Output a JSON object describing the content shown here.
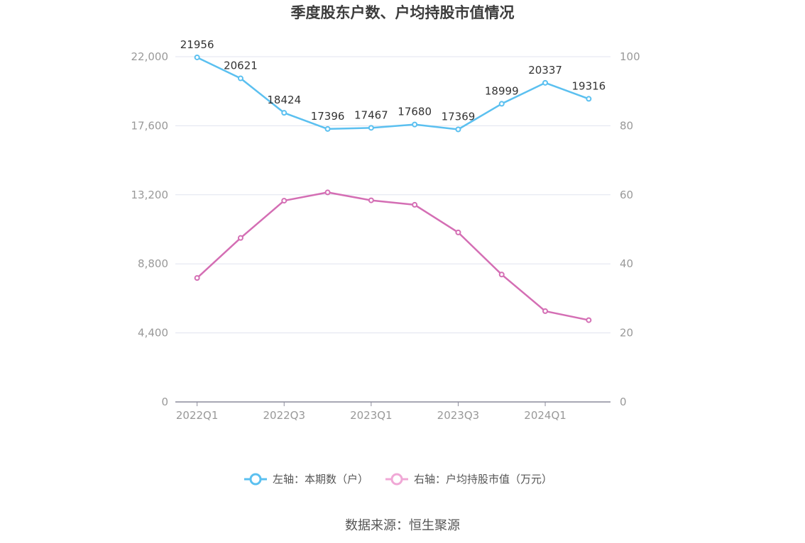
{
  "chart_data": {
    "type": "line",
    "title": "季度股东户数、户均持股市值情况",
    "categories": [
      "2022Q1",
      "2022Q2",
      "2022Q3",
      "2022Q4",
      "2023Q1",
      "2023Q2",
      "2023Q3",
      "2023Q4",
      "2024Q1",
      "2024Q2"
    ],
    "x_tick_labels": [
      "2022Q1",
      "2022Q3",
      "2023Q1",
      "2023Q3",
      "2024Q1"
    ],
    "y_left": {
      "ticks": [
        "0",
        "4,400",
        "8,800",
        "13,200",
        "17,600",
        "22,000"
      ],
      "range": [
        0,
        22000
      ]
    },
    "y_right": {
      "ticks": [
        "0",
        "20",
        "40",
        "60",
        "80",
        "100"
      ],
      "range": [
        0,
        100
      ]
    },
    "series": [
      {
        "name": "左轴：本期数（户）",
        "axis": "left",
        "color": "#5bc0f0",
        "values": [
          21956,
          20621,
          18424,
          17396,
          17467,
          17680,
          17369,
          18999,
          20337,
          19316
        ],
        "labels": [
          "21956",
          "20621",
          "18424",
          "17396",
          "17467",
          "17680",
          "17369",
          "18999",
          "20337",
          "19316"
        ]
      },
      {
        "name": "右轴：户均持股市值（万元）",
        "axis": "right",
        "color": "#d46eb4",
        "values": [
          35.9,
          47.5,
          58.3,
          60.7,
          58.4,
          57.1,
          49.1,
          36.9,
          26.3,
          23.7
        ]
      }
    ],
    "grid": true,
    "legend_position": "bottom"
  },
  "legend": {
    "left_label": "左轴：本期数（户）",
    "right_label": "右轴：户均持股市值（万元）"
  },
  "source": "数据来源：恒生聚源"
}
